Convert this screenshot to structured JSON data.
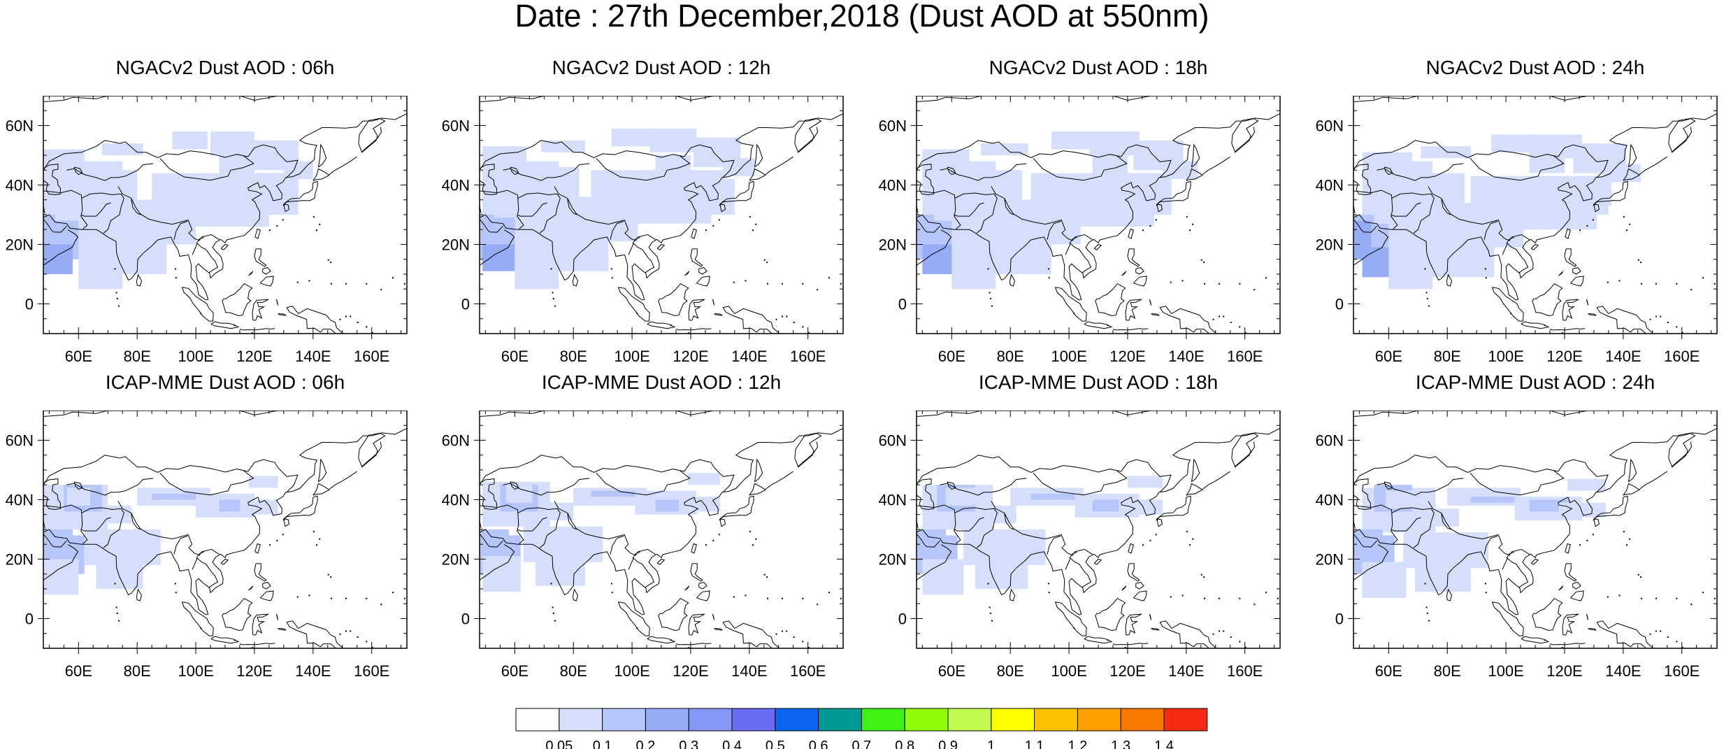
{
  "title": "Date : 27th December,2018 (Dust AOD at 550nm)",
  "lon_ticks": [
    "60E",
    "80E",
    "100E",
    "120E",
    "140E",
    "160E"
  ],
  "lat_ticks": [
    "60N",
    "40N",
    "20N",
    "0"
  ],
  "panels": [
    {
      "title": "NGACv2 Dust AOD : 06h",
      "model": "NGACv2",
      "hour": "06h"
    },
    {
      "title": "NGACv2 Dust AOD : 12h",
      "model": "NGACv2",
      "hour": "12h"
    },
    {
      "title": "NGACv2 Dust AOD : 18h",
      "model": "NGACv2",
      "hour": "18h"
    },
    {
      "title": "NGACv2 Dust AOD : 24h",
      "model": "NGACv2",
      "hour": "24h"
    },
    {
      "title": "ICAP-MME Dust AOD : 06h",
      "model": "ICAP-MME",
      "hour": "06h"
    },
    {
      "title": "ICAP-MME Dust AOD : 12h",
      "model": "ICAP-MME",
      "hour": "12h"
    },
    {
      "title": "ICAP-MME Dust AOD : 18h",
      "model": "ICAP-MME",
      "hour": "18h"
    },
    {
      "title": "ICAP-MME Dust AOD : 24h",
      "model": "ICAP-MME",
      "hour": "24h"
    }
  ],
  "colorbar": {
    "labels": [
      "0.05",
      "0.1",
      "0.2",
      "0.3",
      "0.4",
      "0.5",
      "0.6",
      "0.7",
      "0.8",
      "0.9",
      "1",
      "1.1",
      "1.2",
      "1.3",
      "1.4"
    ],
    "colors": [
      "#ffffff",
      "#d5dffc",
      "#b7c6fa",
      "#97acf6",
      "#8797f6",
      "#6b6cf5",
      "#0d63f2",
      "#009a94",
      "#3ef213",
      "#92fb08",
      "#c2fb4d",
      "#fefe00",
      "#fcc300",
      "#fca000",
      "#fb7800",
      "#f82a14"
    ]
  }
}
